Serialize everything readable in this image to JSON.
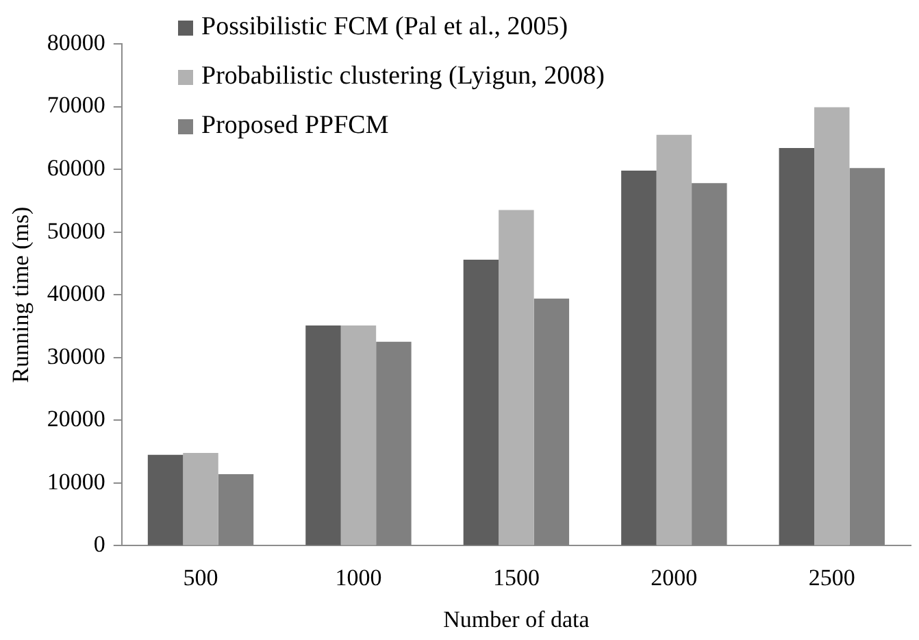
{
  "chart_data": {
    "type": "bar",
    "xlabel": "Number of data",
    "ylabel": "Running time (ms)",
    "categories": [
      "500",
      "1000",
      "1500",
      "2000",
      "2500"
    ],
    "series": [
      {
        "name": "Possibilistic FCM (Pal et al., 2005)",
        "color": "#5e5e5e",
        "values": [
          14500,
          35100,
          45600,
          59800,
          63400
        ]
      },
      {
        "name": "Probabilistic clustering (Lyigun, 2008)",
        "color": "#b2b2b2",
        "values": [
          14800,
          35100,
          53500,
          65500,
          69900
        ]
      },
      {
        "name": "Proposed PPFCM",
        "color": "#808080",
        "values": [
          11400,
          32500,
          39400,
          57800,
          60200
        ]
      }
    ],
    "ylim": [
      0,
      80000
    ],
    "yticks": [
      0,
      10000,
      20000,
      30000,
      40000,
      50000,
      60000,
      70000,
      80000
    ],
    "grid": false,
    "legend": "top left"
  }
}
